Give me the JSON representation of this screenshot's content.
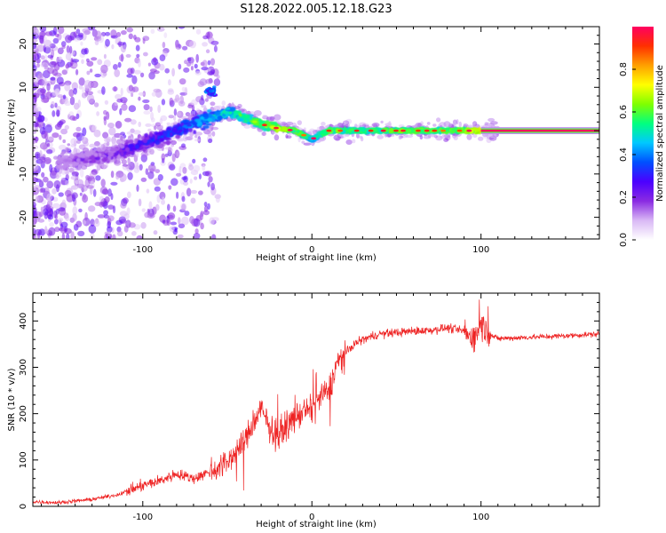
{
  "title": "S128.2022.005.12.18.G23",
  "chart_data": [
    {
      "type": "heatmap",
      "xlabel": "Height of straight line (km)",
      "ylabel": "Frequency (Hz)",
      "xlim": [
        -165,
        170
      ],
      "ylim": [
        -25,
        24
      ],
      "xticks": [
        -100,
        0,
        100
      ],
      "yticks": [
        -20,
        -10,
        0,
        10,
        20
      ],
      "colorbar": {
        "label": "Normalized spectral amplitude",
        "range": [
          0,
          1
        ],
        "ticks": [
          "0.0",
          "0.2",
          "0.4",
          "0.6",
          "0.8"
        ],
        "colors": [
          "#ffffff",
          "#d9b8f5",
          "#8a2be2",
          "#4b00ff",
          "#0050ff",
          "#00c8ff",
          "#00ff80",
          "#7fff00",
          "#ffff00",
          "#ffa000",
          "#ff3000",
          "#ff0060"
        ]
      },
      "ridge": {
        "x": [
          -145,
          -130,
          -115,
          -100,
          -85,
          -75,
          -60,
          -48,
          -40,
          -30,
          -20,
          -10,
          0,
          10,
          30,
          60,
          90,
          100,
          170
        ],
        "y": [
          -7,
          -6.5,
          -5,
          -3,
          -1,
          1,
          3,
          4.5,
          3,
          1.5,
          0.5,
          0,
          -2,
          0,
          0,
          0,
          0,
          0,
          0
        ],
        "amplitude": [
          0.2,
          0.25,
          0.3,
          0.35,
          0.4,
          0.45,
          0.55,
          0.6,
          0.65,
          0.7,
          0.75,
          0.7,
          0.6,
          0.7,
          0.65,
          0.7,
          0.72,
          0.85,
          1.0
        ]
      },
      "side_blob": {
        "x": -60,
        "y": 9,
        "amplitude": 0.45
      }
    },
    {
      "type": "line",
      "color": "#ee2222",
      "xlabel": "Height of straight line (km)",
      "ylabel": "SNR (10 * v/v)",
      "xlim": [
        -165,
        170
      ],
      "ylim": [
        0,
        460
      ],
      "xticks": [
        -100,
        0,
        100
      ],
      "yticks": [
        0,
        100,
        200,
        300,
        400
      ],
      "x": [
        -165,
        -150,
        -130,
        -115,
        -100,
        -90,
        -80,
        -70,
        -60,
        -50,
        -40,
        -30,
        -25,
        -20,
        -15,
        -10,
        -5,
        0,
        5,
        10,
        15,
        20,
        25,
        30,
        40,
        50,
        60,
        70,
        80,
        90,
        95,
        100,
        105,
        110,
        130,
        150,
        170
      ],
      "y": [
        10,
        8,
        15,
        25,
        45,
        55,
        70,
        60,
        75,
        95,
        140,
        210,
        170,
        150,
        175,
        190,
        205,
        210,
        235,
        250,
        310,
        330,
        350,
        360,
        372,
        375,
        378,
        380,
        385,
        378,
        360,
        395,
        370,
        362,
        365,
        368,
        372
      ]
    }
  ]
}
